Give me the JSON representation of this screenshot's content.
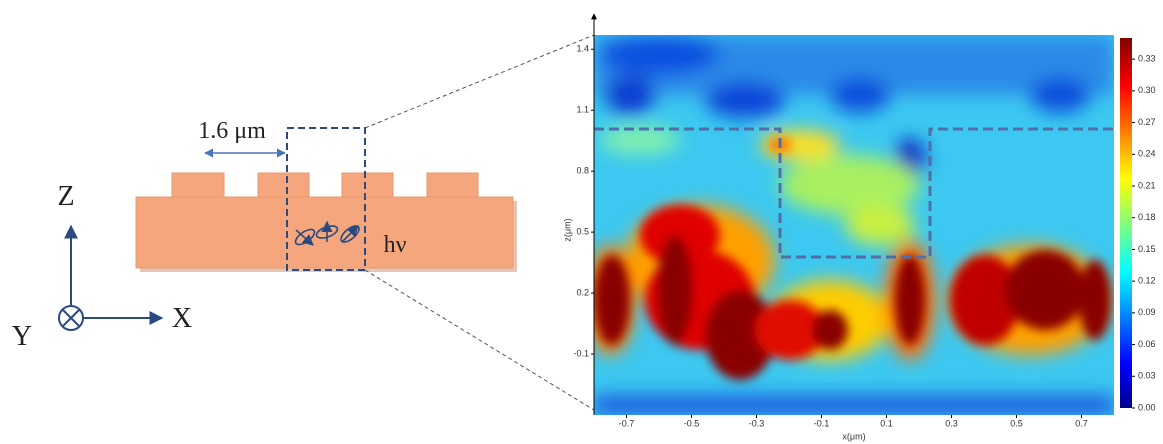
{
  "schematic": {
    "period_label": "1.6 μm",
    "axis_z": "Z",
    "axis_x": "X",
    "axis_y": "Y",
    "photon_label": "hν"
  },
  "field_map": {
    "x_label": "x(μm)",
    "z_label": "z(μm)",
    "xlim": [
      -0.8,
      0.8
    ],
    "xticks": [
      -0.7,
      -0.5,
      -0.3,
      -0.1,
      0.1,
      0.3,
      0.5,
      0.7
    ],
    "zlim": [
      -0.4,
      1.47
    ],
    "zticks": [
      -0.1,
      0.2,
      0.5,
      0.8,
      1.1,
      1.4
    ],
    "colorbar": {
      "lim": [
        0,
        0.35
      ],
      "ticks": [
        {
          "value": 0,
          "label": "0.00"
        },
        {
          "value": 0.03,
          "label": "0.03"
        },
        {
          "value": 0.06,
          "label": "0.06"
        },
        {
          "value": 0.09,
          "label": "0.09"
        },
        {
          "value": 0.12,
          "label": "0.12"
        },
        {
          "value": 0.15,
          "label": "0.15"
        },
        {
          "value": 0.18,
          "label": "0.18"
        },
        {
          "value": 0.21,
          "label": "0.21"
        },
        {
          "value": 0.24,
          "label": "0.24"
        },
        {
          "value": 0.27,
          "label": "0.27"
        },
        {
          "value": 0.3,
          "label": "0.30"
        },
        {
          "value": 0.33,
          "label": "0.33"
        }
      ]
    }
  }
}
